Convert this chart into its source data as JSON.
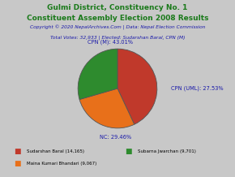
{
  "title_line1": "Gulmi District, Constituency No. 1",
  "title_line2": "Constituent Assembly Election 2008 Results",
  "copyright": "Copyright © 2020 NepalArchives.Com | Data: Nepal Election Commission",
  "total_votes_line": "Total Votes: 32,933 | Elected: Sudarshan Baral, CPN (M)",
  "slices": [
    {
      "label": "CPN (M): 43.01%",
      "value": 14165,
      "color": "#c0392b",
      "pct": 43.01
    },
    {
      "label": "CPN (UML): 27.53%",
      "value": 9067,
      "color": "#e8701a",
      "pct": 27.53
    },
    {
      "label": "NC: 29.46%",
      "value": 9701,
      "color": "#2e8b2e",
      "pct": 29.46
    }
  ],
  "legend": [
    {
      "label": "Sudarshan Baral (14,165)",
      "color": "#c0392b"
    },
    {
      "label": "Maina Kumari Bhandari (9,067)",
      "color": "#e8701a"
    },
    {
      "label": "Subarna Jwarchan (9,701)",
      "color": "#2e8b2e"
    }
  ],
  "title_color": "#1a7a1a",
  "copyright_color": "#1a1aaa",
  "total_votes_color": "#1a1aaa",
  "label_color": "#1a1aaa",
  "background_color": "#c8c8c8"
}
